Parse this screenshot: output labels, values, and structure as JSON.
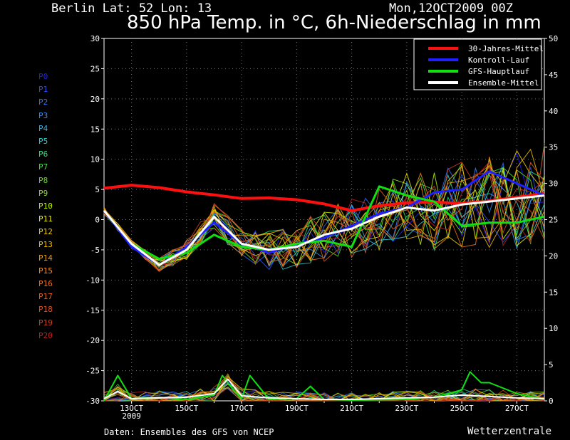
{
  "header": {
    "location": "Berlin  Lat: 52 Lon: 13",
    "run": "Mon,12OCT2009 00Z",
    "title": "850 hPa Temp. in °C, 6h-Niederschlag in mm"
  },
  "footer": {
    "source": "Daten: Ensembles des GFS von NCEP",
    "brand": "Wetterzentrale"
  },
  "members": [
    {
      "label": "P0",
      "color": "#2020ff"
    },
    {
      "label": "P1",
      "color": "#2850ff"
    },
    {
      "label": "P2",
      "color": "#3070ff"
    },
    {
      "label": "P3",
      "color": "#3090ff"
    },
    {
      "label": "P4",
      "color": "#30b0f0"
    },
    {
      "label": "P5",
      "color": "#30d0d0"
    },
    {
      "label": "P6",
      "color": "#30e080"
    },
    {
      "label": "P7",
      "color": "#40e040"
    },
    {
      "label": "P8",
      "color": "#60e020"
    },
    {
      "label": "P9",
      "color": "#90e010"
    },
    {
      "label": "P10",
      "color": "#c0f000"
    },
    {
      "label": "P11",
      "color": "#f0f000"
    },
    {
      "label": "P12",
      "color": "#f0d000"
    },
    {
      "label": "P13",
      "color": "#f0c000"
    },
    {
      "label": "P14",
      "color": "#f0a000"
    },
    {
      "label": "P15",
      "color": "#f09020"
    },
    {
      "label": "P16",
      "color": "#f07020"
    },
    {
      "label": "P17",
      "color": "#e06020"
    },
    {
      "label": "P18",
      "color": "#e05020"
    },
    {
      "label": "P19",
      "color": "#d04020"
    },
    {
      "label": "P20",
      "color": "#c02020"
    }
  ],
  "chart_data": {
    "type": "line",
    "title": "850 hPa Temp. in °C, 6h-Niederschlag in mm",
    "y_left": {
      "min": -30,
      "max": 30,
      "ticks": [
        30,
        25,
        20,
        15,
        10,
        5,
        0,
        -5,
        -10,
        -15,
        -20,
        -25,
        -30
      ]
    },
    "y_right": {
      "min": 0,
      "max": 50,
      "ticks": [
        50,
        45,
        40,
        35,
        30,
        25,
        20,
        15,
        10,
        5,
        0
      ]
    },
    "x_range_days": [
      12,
      28
    ],
    "x_ticks": [
      {
        "label": "13OCT",
        "day": 13
      },
      {
        "label": "15OCT",
        "day": 15
      },
      {
        "label": "17OCT",
        "day": 17
      },
      {
        "label": "19OCT",
        "day": 19
      },
      {
        "label": "21OCT",
        "day": 21
      },
      {
        "label": "23OCT",
        "day": 23
      },
      {
        "label": "25OCT",
        "day": 25
      },
      {
        "label": "27OCT",
        "day": 27
      }
    ],
    "x_sublabel": "2009",
    "grid": true,
    "legend_position": "top-right",
    "series": [
      {
        "name": "30-Jahres-Mittel",
        "color": "#ff1010",
        "axis": "temp",
        "points": [
          [
            12,
            5.2
          ],
          [
            13,
            5.7
          ],
          [
            14,
            5.3
          ],
          [
            15,
            4.6
          ],
          [
            16,
            4.1
          ],
          [
            17,
            3.5
          ],
          [
            18,
            3.6
          ],
          [
            19,
            3.3
          ],
          [
            20,
            2.6
          ],
          [
            21,
            1.5
          ],
          [
            22,
            2.3
          ],
          [
            23,
            2.8
          ],
          [
            24,
            2.9
          ],
          [
            25,
            2.7
          ],
          [
            26,
            3.1
          ],
          [
            27,
            3.7
          ],
          [
            28,
            4.3
          ]
        ]
      },
      {
        "name": "Kontroll-Lauf",
        "color": "#2020ff",
        "axis": "temp",
        "points": [
          [
            12,
            1.5
          ],
          [
            13,
            -4.5
          ],
          [
            14,
            -7.5
          ],
          [
            15,
            -4.5
          ],
          [
            16,
            -0.5
          ],
          [
            17,
            -4.0
          ],
          [
            18,
            -5.5
          ],
          [
            19,
            -4.0
          ],
          [
            20,
            -3.0
          ],
          [
            21,
            -1.0
          ],
          [
            22,
            1.0
          ],
          [
            23,
            2.0
          ],
          [
            24,
            4.5
          ],
          [
            25,
            5.0
          ],
          [
            26,
            8.0
          ],
          [
            27,
            6.0
          ],
          [
            28,
            4.0
          ]
        ]
      },
      {
        "name": "GFS-Hauptlauf",
        "color": "#10e010",
        "axis": "temp",
        "points": [
          [
            12,
            1.5
          ],
          [
            13,
            -4.0
          ],
          [
            14,
            -6.5
          ],
          [
            15,
            -5.5
          ],
          [
            16,
            -2.5
          ],
          [
            17,
            -4.5
          ],
          [
            18,
            -5.0
          ],
          [
            19,
            -4.0
          ],
          [
            20,
            -3.5
          ],
          [
            21,
            -4.5
          ],
          [
            22,
            5.5
          ],
          [
            23,
            4.0
          ],
          [
            24,
            3.0
          ],
          [
            25,
            -1.0
          ],
          [
            26,
            -0.5
          ],
          [
            27,
            -0.5
          ],
          [
            28,
            0.5
          ]
        ]
      },
      {
        "name": "Ensemble-Mittel",
        "color": "#ffffff",
        "axis": "temp",
        "points": [
          [
            12,
            1.5
          ],
          [
            13,
            -4.0
          ],
          [
            14,
            -7.5
          ],
          [
            15,
            -5.0
          ],
          [
            16,
            0.5
          ],
          [
            17,
            -4.0
          ],
          [
            18,
            -5.0
          ],
          [
            19,
            -4.5
          ],
          [
            20,
            -2.5
          ],
          [
            21,
            -1.5
          ],
          [
            22,
            0.5
          ],
          [
            23,
            2.0
          ],
          [
            24,
            1.5
          ],
          [
            25,
            2.5
          ],
          [
            26,
            3.0
          ],
          [
            27,
            3.5
          ],
          [
            28,
            4.0
          ]
        ]
      },
      {
        "name": "GFS-Hauptlauf Niederschlag",
        "color": "#10e010",
        "axis": "precip",
        "points": [
          [
            12,
            0
          ],
          [
            12.5,
            3.5
          ],
          [
            13,
            0.3
          ],
          [
            14,
            0.5
          ],
          [
            15,
            0.2
          ],
          [
            16,
            0.8
          ],
          [
            16.3,
            3.5
          ],
          [
            16.7,
            1.5
          ],
          [
            17,
            0.3
          ],
          [
            17.3,
            3.5
          ],
          [
            18,
            0.2
          ],
          [
            19,
            0.3
          ],
          [
            19.5,
            2.0
          ],
          [
            20,
            0.2
          ],
          [
            21,
            0.1
          ],
          [
            23,
            0.2
          ],
          [
            24,
            0.5
          ],
          [
            25,
            1.5
          ],
          [
            25.3,
            4.0
          ],
          [
            25.7,
            2.5
          ],
          [
            26,
            2.5
          ],
          [
            27,
            1.0
          ],
          [
            28,
            0.2
          ]
        ]
      },
      {
        "name": "Ensemble-Mittel Niederschlag",
        "color": "#ffffff",
        "axis": "precip",
        "points": [
          [
            12,
            0.3
          ],
          [
            12.5,
            1.3
          ],
          [
            13,
            0.3
          ],
          [
            14,
            0.4
          ],
          [
            15,
            0.5
          ],
          [
            16,
            1.0
          ],
          [
            16.5,
            3.0
          ],
          [
            17,
            0.7
          ],
          [
            18,
            0.4
          ],
          [
            19,
            0.3
          ],
          [
            20,
            0.2
          ],
          [
            21,
            0.2
          ],
          [
            22,
            0.3
          ],
          [
            23,
            0.4
          ],
          [
            24,
            0.5
          ],
          [
            25,
            0.8
          ],
          [
            26,
            0.6
          ],
          [
            27,
            0.4
          ],
          [
            28,
            0.3
          ]
        ]
      }
    ],
    "legend": [
      {
        "name": "30-Jahres-Mittel",
        "color": "#ff1010"
      },
      {
        "name": "Kontroll-Lauf",
        "color": "#2020ff"
      },
      {
        "name": "GFS-Hauptlauf",
        "color": "#10e010"
      },
      {
        "name": "Ensemble-Mittel",
        "color": "#ffffff"
      }
    ]
  }
}
